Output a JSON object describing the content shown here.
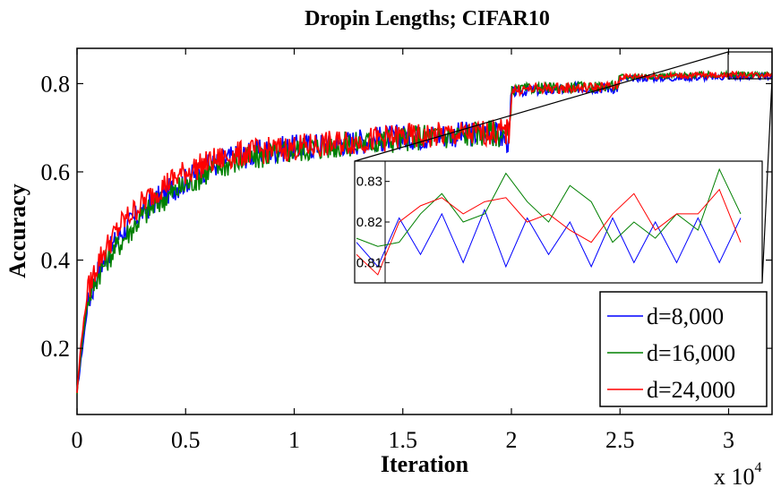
{
  "chart_data": {
    "type": "line",
    "title": "Dropin Lengths; CIFAR10",
    "xlabel": "Iteration",
    "ylabel": "Accuracy",
    "x_multiplier_label": "x 10",
    "x_multiplier_exp": "4",
    "xlim": [
      0,
      3.2
    ],
    "ylim": [
      0.05,
      0.88
    ],
    "xticks": [
      0,
      0.5,
      1,
      1.5,
      2,
      2.5,
      3
    ],
    "xtick_labels": [
      "0",
      "0.5",
      "1",
      "1.5",
      "2",
      "2.5",
      "3"
    ],
    "yticks": [
      0.2,
      0.4,
      0.6,
      0.8
    ],
    "ytick_labels": [
      "0.2",
      "0.4",
      "0.6",
      "0.8"
    ],
    "legend_position": "bottom-right",
    "series": [
      {
        "name": "d=8,000",
        "color": "#0000ff",
        "x": [
          0,
          0.02,
          0.05,
          0.1,
          0.15,
          0.2,
          0.3,
          0.4,
          0.5,
          0.6,
          0.7,
          0.8,
          0.9,
          1.0,
          1.1,
          1.2,
          1.3,
          1.4,
          1.5,
          1.6,
          1.7,
          1.8,
          1.9,
          1.99,
          2.0,
          2.1,
          2.2,
          2.3,
          2.4,
          2.49,
          2.5,
          2.6,
          2.7,
          2.8,
          2.9,
          3.0,
          3.1,
          3.2
        ],
        "y": [
          0.1,
          0.18,
          0.3,
          0.38,
          0.42,
          0.46,
          0.51,
          0.55,
          0.58,
          0.61,
          0.63,
          0.64,
          0.65,
          0.655,
          0.66,
          0.665,
          0.67,
          0.675,
          0.68,
          0.68,
          0.685,
          0.685,
          0.69,
          0.67,
          0.78,
          0.785,
          0.785,
          0.79,
          0.79,
          0.79,
          0.81,
          0.812,
          0.812,
          0.813,
          0.814,
          0.815,
          0.815,
          0.816
        ]
      },
      {
        "name": "d=16,000",
        "color": "#008000",
        "x": [
          0,
          0.02,
          0.05,
          0.1,
          0.15,
          0.2,
          0.3,
          0.4,
          0.5,
          0.6,
          0.7,
          0.8,
          0.9,
          1.0,
          1.1,
          1.2,
          1.3,
          1.4,
          1.5,
          1.6,
          1.7,
          1.8,
          1.9,
          1.99,
          2.0,
          2.1,
          2.2,
          2.3,
          2.4,
          2.49,
          2.5,
          2.6,
          2.7,
          2.8,
          2.9,
          3.0,
          3.1,
          3.2
        ],
        "y": [
          0.1,
          0.2,
          0.31,
          0.37,
          0.41,
          0.44,
          0.5,
          0.54,
          0.57,
          0.6,
          0.62,
          0.63,
          0.64,
          0.65,
          0.655,
          0.66,
          0.665,
          0.67,
          0.675,
          0.68,
          0.68,
          0.685,
          0.69,
          0.68,
          0.785,
          0.79,
          0.79,
          0.792,
          0.793,
          0.795,
          0.815,
          0.817,
          0.818,
          0.819,
          0.82,
          0.82,
          0.821,
          0.822
        ]
      },
      {
        "name": "d=24,000",
        "color": "#ff0000",
        "x": [
          0,
          0.02,
          0.05,
          0.1,
          0.15,
          0.2,
          0.3,
          0.4,
          0.5,
          0.6,
          0.7,
          0.8,
          0.9,
          1.0,
          1.1,
          1.2,
          1.3,
          1.4,
          1.5,
          1.6,
          1.7,
          1.8,
          1.9,
          1.99,
          2.0,
          2.1,
          2.2,
          2.3,
          2.4,
          2.49,
          2.5,
          2.6,
          2.7,
          2.8,
          2.9,
          3.0,
          3.1,
          3.2
        ],
        "y": [
          0.1,
          0.22,
          0.33,
          0.4,
          0.44,
          0.48,
          0.53,
          0.57,
          0.6,
          0.62,
          0.635,
          0.645,
          0.65,
          0.655,
          0.66,
          0.665,
          0.67,
          0.675,
          0.68,
          0.68,
          0.685,
          0.685,
          0.69,
          0.69,
          0.785,
          0.788,
          0.79,
          0.79,
          0.792,
          0.795,
          0.815,
          0.817,
          0.818,
          0.818,
          0.819,
          0.82,
          0.82,
          0.821
        ]
      }
    ],
    "inset": {
      "xlim": [
        3.0,
        3.2
      ],
      "ylim": [
        0.805,
        0.835
      ],
      "yticks": [
        0.81,
        0.82,
        0.83
      ],
      "ytick_labels": [
        "0.81",
        "0.82",
        "0.83"
      ],
      "series": [
        {
          "name": "d=8,000",
          "color": "#0000ff",
          "y": [
            0.815,
            0.809,
            0.821,
            0.812,
            0.822,
            0.81,
            0.823,
            0.809,
            0.821,
            0.812,
            0.82,
            0.809,
            0.821,
            0.81,
            0.82,
            0.81,
            0.821,
            0.81,
            0.821
          ]
        },
        {
          "name": "d=16,000",
          "color": "#008000",
          "y": [
            0.816,
            0.814,
            0.815,
            0.822,
            0.827,
            0.82,
            0.822,
            0.832,
            0.825,
            0.82,
            0.829,
            0.825,
            0.815,
            0.82,
            0.816,
            0.822,
            0.818,
            0.833,
            0.822
          ]
        },
        {
          "name": "d=24,000",
          "color": "#ff0000",
          "y": [
            0.812,
            0.807,
            0.82,
            0.824,
            0.826,
            0.822,
            0.825,
            0.826,
            0.82,
            0.822,
            0.818,
            0.815,
            0.822,
            0.827,
            0.818,
            0.822,
            0.822,
            0.828,
            0.815
          ]
        }
      ]
    }
  }
}
